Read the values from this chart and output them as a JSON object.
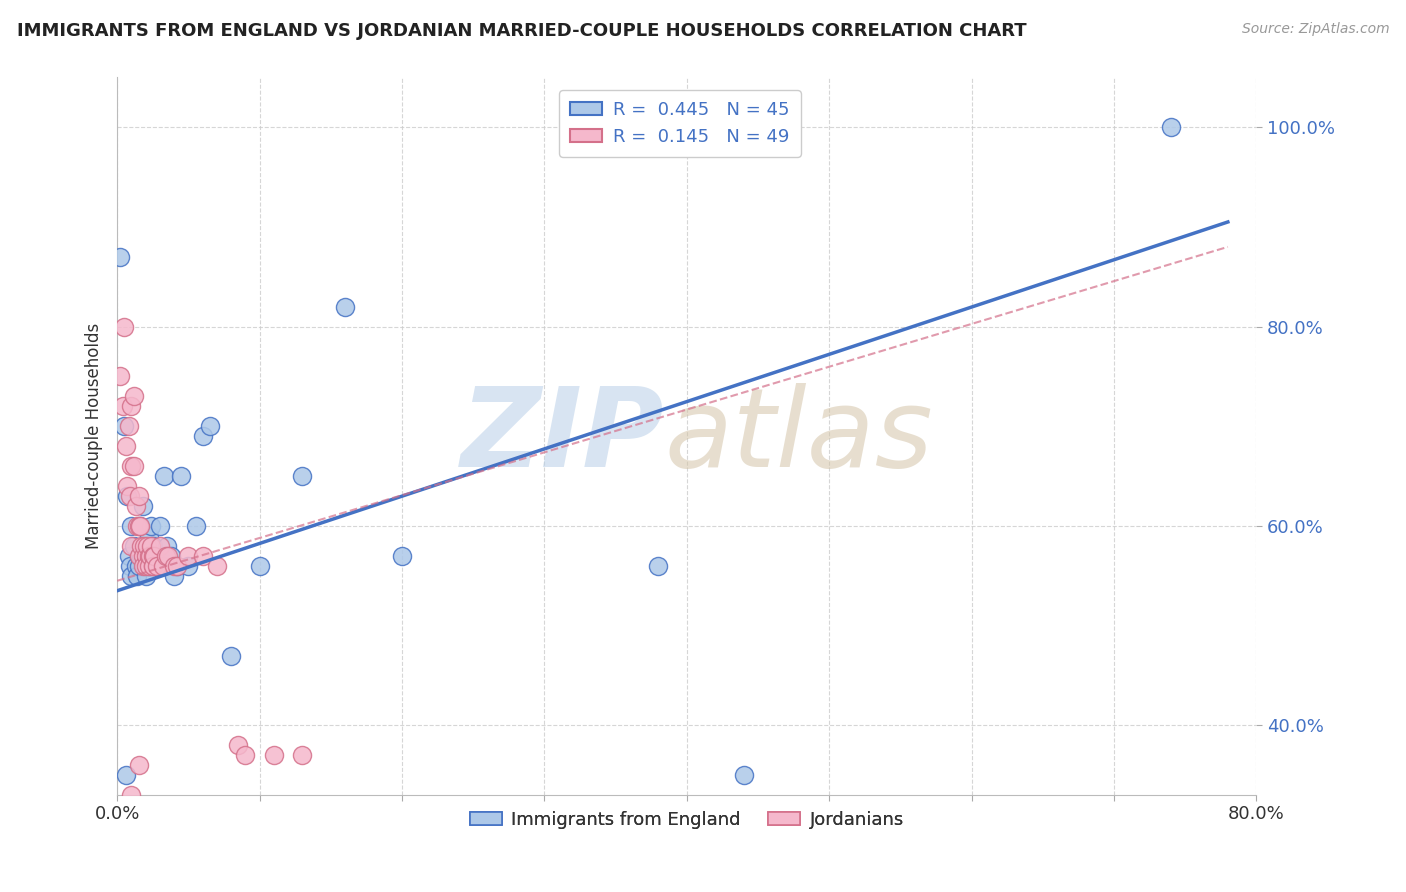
{
  "title": "IMMIGRANTS FROM ENGLAND VS JORDANIAN MARRIED-COUPLE HOUSEHOLDS CORRELATION CHART",
  "source": "Source: ZipAtlas.com",
  "ylabel": "Married-couple Households",
  "legend_england_R": "0.445",
  "legend_england_N": "45",
  "legend_jordan_R": "0.145",
  "legend_jordan_N": "49",
  "england_color": "#adc8e8",
  "england_line_color": "#4472c4",
  "jordan_color": "#f5b8cc",
  "jordan_line_color": "#d4708a",
  "xlim": [
    0.0,
    0.8
  ],
  "ylim": [
    0.33,
    1.05
  ],
  "yticks": [
    0.4,
    0.6,
    0.8,
    1.0
  ],
  "england_scatter_x": [
    0.002,
    0.005,
    0.007,
    0.008,
    0.009,
    0.01,
    0.01,
    0.012,
    0.013,
    0.014,
    0.015,
    0.015,
    0.016,
    0.017,
    0.018,
    0.019,
    0.02,
    0.02,
    0.022,
    0.022,
    0.024,
    0.025,
    0.026,
    0.028,
    0.03,
    0.032,
    0.033,
    0.035,
    0.038,
    0.04,
    0.042,
    0.045,
    0.05,
    0.055,
    0.06,
    0.065,
    0.08,
    0.1,
    0.13,
    0.16,
    0.2,
    0.38,
    0.44,
    0.74,
    0.006
  ],
  "england_scatter_y": [
    0.87,
    0.7,
    0.63,
    0.57,
    0.56,
    0.55,
    0.6,
    0.58,
    0.56,
    0.55,
    0.57,
    0.56,
    0.6,
    0.57,
    0.62,
    0.56,
    0.57,
    0.55,
    0.59,
    0.56,
    0.6,
    0.58,
    0.57,
    0.56,
    0.6,
    0.57,
    0.65,
    0.58,
    0.57,
    0.55,
    0.56,
    0.65,
    0.56,
    0.6,
    0.69,
    0.7,
    0.47,
    0.56,
    0.65,
    0.82,
    0.57,
    0.56,
    0.35,
    1.0,
    0.35
  ],
  "jordan_scatter_x": [
    0.002,
    0.004,
    0.005,
    0.006,
    0.007,
    0.008,
    0.009,
    0.01,
    0.01,
    0.01,
    0.012,
    0.012,
    0.013,
    0.014,
    0.015,
    0.015,
    0.015,
    0.016,
    0.017,
    0.018,
    0.018,
    0.019,
    0.02,
    0.02,
    0.021,
    0.022,
    0.022,
    0.023,
    0.024,
    0.025,
    0.025,
    0.025,
    0.026,
    0.028,
    0.03,
    0.032,
    0.034,
    0.036,
    0.04,
    0.042,
    0.05,
    0.06,
    0.07,
    0.085,
    0.09,
    0.11,
    0.13,
    0.01,
    0.015
  ],
  "jordan_scatter_y": [
    0.75,
    0.72,
    0.8,
    0.68,
    0.64,
    0.7,
    0.63,
    0.72,
    0.66,
    0.58,
    0.73,
    0.66,
    0.62,
    0.6,
    0.63,
    0.6,
    0.57,
    0.6,
    0.58,
    0.57,
    0.56,
    0.58,
    0.57,
    0.56,
    0.58,
    0.57,
    0.56,
    0.57,
    0.58,
    0.57,
    0.56,
    0.56,
    0.57,
    0.56,
    0.58,
    0.56,
    0.57,
    0.57,
    0.56,
    0.56,
    0.57,
    0.57,
    0.56,
    0.38,
    0.37,
    0.37,
    0.37,
    0.33,
    0.36
  ],
  "eng_line_x": [
    0.0,
    0.78
  ],
  "eng_line_y": [
    0.535,
    0.905
  ],
  "jor_line_x": [
    0.0,
    0.78
  ],
  "jor_line_y": [
    0.545,
    0.88
  ]
}
